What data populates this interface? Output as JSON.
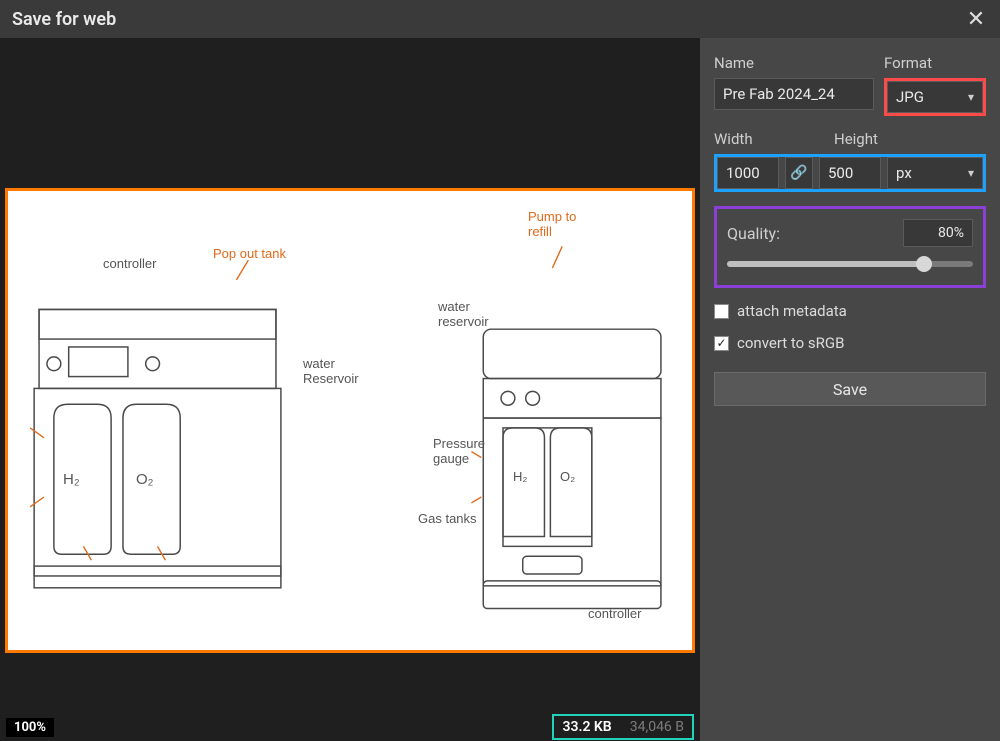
{
  "dialog": {
    "title": "Save for web",
    "close_glyph": "✕"
  },
  "preview": {
    "zoom": "100%",
    "file_size_kb": "33.2 KB",
    "file_size_bytes": "34,046 B",
    "image_border_color": "#ff7a00",
    "size_badge_border_color": "#1fd4b8",
    "background_color": "#1f1f1f",
    "sketch": {
      "stroke": "#4f4f4f",
      "stroke_light": "#9a9a9a",
      "accent": "#e06a1a",
      "labels": {
        "controller_left": "controller",
        "pop_out_tank": "Pop out tank",
        "water_reservoir_left": "water\nReservoir",
        "h2": "H₂",
        "o2": "O₂",
        "pump_refill": "Pump to\nrefill",
        "water_reservoir_right": "water\nreservoir",
        "pressure_gauge": "Pressure\ngauge",
        "gas_tanks": "Gas tanks",
        "h2_r": "H₂",
        "o2_r": "O₂",
        "controller_right": "controller"
      }
    }
  },
  "panel": {
    "name": {
      "label": "Name",
      "value": "Pre Fab 2024_24"
    },
    "format": {
      "label": "Format",
      "value": "JPG",
      "highlight_color": "#ff4a4a"
    },
    "dimensions": {
      "width_label": "Width",
      "height_label": "Height",
      "width": "1000",
      "height": "500",
      "unit": "px",
      "link_glyph": "🔗",
      "highlight_color": "#1ea0ff"
    },
    "quality": {
      "label": "Quality:",
      "value_display": "80%",
      "value_pct": 80,
      "highlight_color": "#8b3fd6"
    },
    "checks": {
      "attach_metadata": {
        "label": "attach metadata",
        "checked": false
      },
      "convert_srgb": {
        "label": "convert to sRGB",
        "checked": true,
        "check_glyph": "✓"
      }
    },
    "save_label": "Save",
    "colors": {
      "panel_bg": "#474747",
      "input_bg": "#383838",
      "input_border": "#5a5a5a",
      "text": "#eaeaea"
    }
  }
}
